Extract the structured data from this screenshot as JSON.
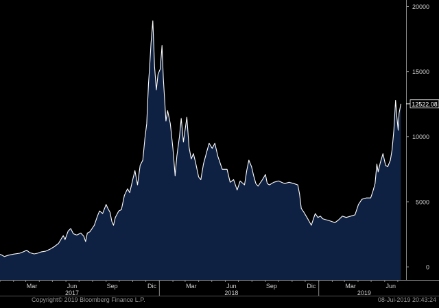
{
  "chart_data": {
    "type": "area",
    "title": "",
    "xlabel": "",
    "ylabel": "",
    "ylim": [
      -1000,
      20500
    ],
    "grid": false,
    "yticks": [
      0,
      5000,
      10000,
      15000,
      20000
    ],
    "last_value_label": "12522.08",
    "x_tick_labels": [
      "Mar",
      "Jun",
      "Sep",
      "Dic",
      "Mar",
      "Jun",
      "Sep",
      "Dic",
      "Mar",
      "Jun"
    ],
    "x_tick_months": [
      "2017-03",
      "2017-06",
      "2017-09",
      "2017-12",
      "2018-03",
      "2018-06",
      "2018-09",
      "2018-12",
      "2019-03",
      "2019-06"
    ],
    "year_labels": [
      {
        "label": "2017",
        "month": "2017-06"
      },
      {
        "label": "2018",
        "month": "2018-06"
      },
      {
        "label": "2019",
        "month": "2019-04"
      }
    ],
    "x_start": "2017-01-01",
    "x_end": "2019-07-20",
    "series": [
      {
        "fill": "#0f2142",
        "line_color": "#ffffff",
        "points": [
          [
            "2017-01-01",
            970
          ],
          [
            "2017-01-06",
            890
          ],
          [
            "2017-01-11",
            800
          ],
          [
            "2017-01-20",
            900
          ],
          [
            "2017-02-01",
            980
          ],
          [
            "2017-02-15",
            1050
          ],
          [
            "2017-02-25",
            1180
          ],
          [
            "2017-03-03",
            1280
          ],
          [
            "2017-03-10",
            1100
          ],
          [
            "2017-03-20",
            1000
          ],
          [
            "2017-03-28",
            1050
          ],
          [
            "2017-04-05",
            1150
          ],
          [
            "2017-04-15",
            1200
          ],
          [
            "2017-04-25",
            1350
          ],
          [
            "2017-05-05",
            1550
          ],
          [
            "2017-05-15",
            1800
          ],
          [
            "2017-05-22",
            2200
          ],
          [
            "2017-05-26",
            2400
          ],
          [
            "2017-05-30",
            2100
          ],
          [
            "2017-06-06",
            2750
          ],
          [
            "2017-06-12",
            2950
          ],
          [
            "2017-06-18",
            2550
          ],
          [
            "2017-06-26",
            2450
          ],
          [
            "2017-07-05",
            2600
          ],
          [
            "2017-07-12",
            2350
          ],
          [
            "2017-07-16",
            1950
          ],
          [
            "2017-07-20",
            2600
          ],
          [
            "2017-07-26",
            2700
          ],
          [
            "2017-08-05",
            3200
          ],
          [
            "2017-08-12",
            3900
          ],
          [
            "2017-08-17",
            4300
          ],
          [
            "2017-08-24",
            4100
          ],
          [
            "2017-09-01",
            4800
          ],
          [
            "2017-09-05",
            4500
          ],
          [
            "2017-09-10",
            4200
          ],
          [
            "2017-09-14",
            3500
          ],
          [
            "2017-09-18",
            3200
          ],
          [
            "2017-09-22",
            3800
          ],
          [
            "2017-09-30",
            4300
          ],
          [
            "2017-10-06",
            4400
          ],
          [
            "2017-10-13",
            5500
          ],
          [
            "2017-10-20",
            6000
          ],
          [
            "2017-10-25",
            5700
          ],
          [
            "2017-11-01",
            6700
          ],
          [
            "2017-11-06",
            7400
          ],
          [
            "2017-11-12",
            6300
          ],
          [
            "2017-11-18",
            7800
          ],
          [
            "2017-11-24",
            8200
          ],
          [
            "2017-11-29",
            9900
          ],
          [
            "2017-12-03",
            11000
          ],
          [
            "2017-12-07",
            14000
          ],
          [
            "2017-12-10",
            15500
          ],
          [
            "2017-12-13",
            17200
          ],
          [
            "2017-12-17",
            18900
          ],
          [
            "2017-12-21",
            15400
          ],
          [
            "2017-12-25",
            13600
          ],
          [
            "2017-12-29",
            14800
          ],
          [
            "2018-01-03",
            15200
          ],
          [
            "2018-01-07",
            17000
          ],
          [
            "2018-01-10",
            14500
          ],
          [
            "2018-01-16",
            11200
          ],
          [
            "2018-01-20",
            12000
          ],
          [
            "2018-01-26",
            11000
          ],
          [
            "2018-02-01",
            9100
          ],
          [
            "2018-02-06",
            7000
          ],
          [
            "2018-02-10",
            8500
          ],
          [
            "2018-02-16",
            10000
          ],
          [
            "2018-02-20",
            11400
          ],
          [
            "2018-02-25",
            9600
          ],
          [
            "2018-03-05",
            11500
          ],
          [
            "2018-03-10",
            9200
          ],
          [
            "2018-03-15",
            8300
          ],
          [
            "2018-03-20",
            8700
          ],
          [
            "2018-03-25",
            8000
          ],
          [
            "2018-04-01",
            6900
          ],
          [
            "2018-04-06",
            6700
          ],
          [
            "2018-04-12",
            7900
          ],
          [
            "2018-04-20",
            8900
          ],
          [
            "2018-04-25",
            9500
          ],
          [
            "2018-05-02",
            9100
          ],
          [
            "2018-05-08",
            9500
          ],
          [
            "2018-05-15",
            8500
          ],
          [
            "2018-05-25",
            7500
          ],
          [
            "2018-06-05",
            7500
          ],
          [
            "2018-06-12",
            6500
          ],
          [
            "2018-06-20",
            6700
          ],
          [
            "2018-06-28",
            5900
          ],
          [
            "2018-07-05",
            6600
          ],
          [
            "2018-07-15",
            6300
          ],
          [
            "2018-07-20",
            7400
          ],
          [
            "2018-07-25",
            8200
          ],
          [
            "2018-07-31",
            7700
          ],
          [
            "2018-08-05",
            7000
          ],
          [
            "2018-08-10",
            6400
          ],
          [
            "2018-08-15",
            6200
          ],
          [
            "2018-08-25",
            6700
          ],
          [
            "2018-09-01",
            7100
          ],
          [
            "2018-09-05",
            6400
          ],
          [
            "2018-09-10",
            6300
          ],
          [
            "2018-09-20",
            6500
          ],
          [
            "2018-10-01",
            6600
          ],
          [
            "2018-10-15",
            6400
          ],
          [
            "2018-10-25",
            6500
          ],
          [
            "2018-11-05",
            6400
          ],
          [
            "2018-11-14",
            6300
          ],
          [
            "2018-11-18",
            5600
          ],
          [
            "2018-11-22",
            4500
          ],
          [
            "2018-11-28",
            4200
          ],
          [
            "2018-12-05",
            3800
          ],
          [
            "2018-12-10",
            3500
          ],
          [
            "2018-12-15",
            3200
          ],
          [
            "2018-12-20",
            3700
          ],
          [
            "2018-12-24",
            4100
          ],
          [
            "2018-12-30",
            3800
          ],
          [
            "2019-01-05",
            3900
          ],
          [
            "2019-01-10",
            3700
          ],
          [
            "2019-01-20",
            3600
          ],
          [
            "2019-01-30",
            3500
          ],
          [
            "2019-02-07",
            3400
          ],
          [
            "2019-02-15",
            3600
          ],
          [
            "2019-02-24",
            3900
          ],
          [
            "2019-03-05",
            3800
          ],
          [
            "2019-03-15",
            3900
          ],
          [
            "2019-03-25",
            4000
          ],
          [
            "2019-04-02",
            4800
          ],
          [
            "2019-04-10",
            5200
          ],
          [
            "2019-04-20",
            5300
          ],
          [
            "2019-04-30",
            5300
          ],
          [
            "2019-05-05",
            5800
          ],
          [
            "2019-05-10",
            6400
          ],
          [
            "2019-05-14",
            7900
          ],
          [
            "2019-05-17",
            7300
          ],
          [
            "2019-05-22",
            8000
          ],
          [
            "2019-05-28",
            8700
          ],
          [
            "2019-06-03",
            7800
          ],
          [
            "2019-06-08",
            7700
          ],
          [
            "2019-06-14",
            8200
          ],
          [
            "2019-06-18",
            9000
          ],
          [
            "2019-06-22",
            10500
          ],
          [
            "2019-06-26",
            12800
          ],
          [
            "2019-06-29",
            11500
          ],
          [
            "2019-07-02",
            10500
          ],
          [
            "2019-07-04",
            11800
          ],
          [
            "2019-07-08",
            12522.08
          ]
        ]
      }
    ]
  },
  "footer": {
    "copyright": "Copyright© 2019 Bloomberg Finance L.P.",
    "timestamp": "08-Jul-2019 20:43:24"
  }
}
